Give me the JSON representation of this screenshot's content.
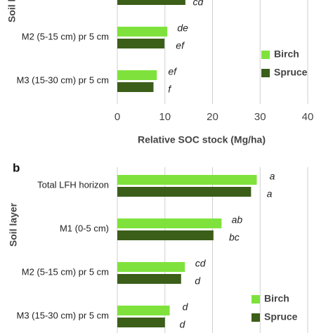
{
  "chart_data": [
    {
      "type": "bar",
      "orientation": "horizontal",
      "y_label": "Soil layer",
      "x_label": "Relative SOC stock (Mg/ha)",
      "categories": [
        null,
        "M2 (5-15 cm) pr 5 cm",
        "M3 (15-30 cm) pr 5 cm"
      ],
      "series": [
        {
          "name": "Birch",
          "color": "#7fe23c",
          "values": [
            null,
            10.5,
            8.3
          ],
          "annotations": [
            null,
            "de",
            "ef"
          ]
        },
        {
          "name": "Spruce",
          "color": "#3b5e19",
          "values": [
            14.3,
            9.9,
            7.6
          ],
          "annotations": [
            "cd",
            "ef",
            "f"
          ]
        }
      ],
      "xlim": [
        0,
        40
      ],
      "xticks": [
        0,
        10,
        20,
        30,
        40
      ],
      "grid": true,
      "legend": "right"
    },
    {
      "type": "bar",
      "orientation": "horizontal",
      "panel_label": "b",
      "y_label": "Soil layer",
      "categories": [
        "Total LFH horizon",
        "M1 (0-5 cm)",
        "M2 (5-15 cm) pr 5 cm",
        "M3 (15-30 cm) pr 5 cm"
      ],
      "series": [
        {
          "name": "Birch",
          "color": "#7fe23c",
          "values": [
            29.3,
            21.9,
            14.2,
            11.0
          ],
          "annotations": [
            "a",
            "ab",
            "cd",
            "d"
          ]
        },
        {
          "name": "Spruce",
          "color": "#3b5e19",
          "values": [
            28.1,
            20.2,
            13.4,
            10.0
          ],
          "annotations": [
            "a",
            "bc",
            "d",
            "d"
          ]
        }
      ],
      "xlim": [
        0,
        40
      ],
      "xticks": [
        0,
        10,
        20,
        30,
        40
      ],
      "grid": true,
      "legend": "right"
    }
  ]
}
